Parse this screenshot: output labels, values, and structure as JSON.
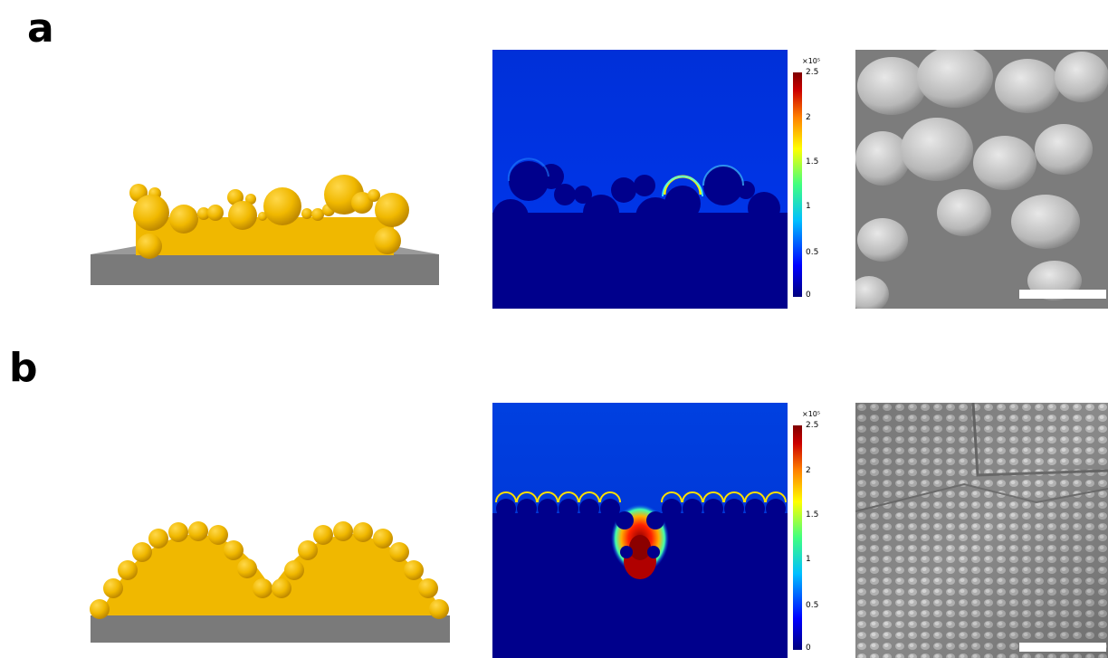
{
  "panels": [
    {
      "label": "a"
    },
    {
      "label": "b"
    }
  ],
  "colorbar": {
    "exponent": "×10⁵",
    "ticks": [
      "2.5",
      "2",
      "1.5",
      "1",
      "0.5",
      "0"
    ],
    "colors": [
      "#00007f",
      "#0000ff",
      "#00bfff",
      "#40ff80",
      "#ffff00",
      "#ff8000",
      "#cc0000",
      "#7f0000"
    ]
  },
  "colors": {
    "gold": "#f0b800",
    "substrate": "#7a7a7a",
    "field_background": "#0033dd",
    "field_dark": "#00008c"
  }
}
